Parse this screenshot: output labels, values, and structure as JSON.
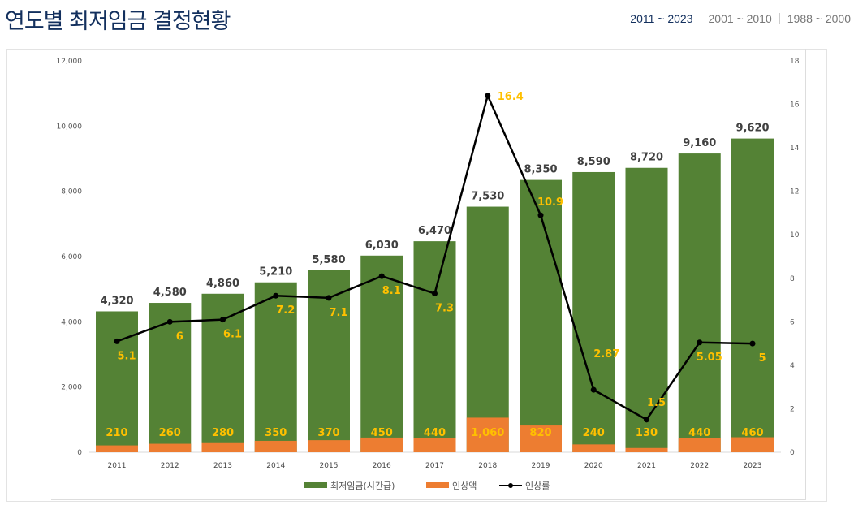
{
  "header": {
    "title": "연도별 최저임금 결정현황",
    "ranges": [
      {
        "label": "2011 ~ 2023",
        "active": true
      },
      {
        "label": "2001 ~ 2010",
        "active": false
      },
      {
        "label": "1988 ~ 2000",
        "active": false
      }
    ]
  },
  "chart_data": {
    "type": "bar+line",
    "categories": [
      "2011",
      "2012",
      "2013",
      "2014",
      "2015",
      "2016",
      "2017",
      "2018",
      "2019",
      "2020",
      "2021",
      "2022",
      "2023"
    ],
    "series": [
      {
        "name": "최저임금(시간급)",
        "type": "bar",
        "axis": "left",
        "color": "#548235",
        "values": [
          4320,
          4580,
          4860,
          5210,
          5580,
          6030,
          6470,
          7530,
          8350,
          8590,
          8720,
          9160,
          9620
        ],
        "labels": [
          "4,320",
          "4,580",
          "4,860",
          "5,210",
          "5,580",
          "6,030",
          "6,470",
          "7,530",
          "8,350",
          "8,590",
          "8,720",
          "9,160",
          "9,620"
        ]
      },
      {
        "name": "인상액",
        "type": "bar",
        "axis": "left",
        "color": "#ED7D31",
        "values": [
          210,
          260,
          280,
          350,
          370,
          450,
          440,
          1060,
          820,
          240,
          130,
          440,
          460
        ],
        "labels": [
          "210",
          "260",
          "280",
          "350",
          "370",
          "450",
          "440",
          "1,060",
          "820",
          "240",
          "130",
          "440",
          "460"
        ]
      },
      {
        "name": "인상률",
        "type": "line",
        "axis": "right",
        "color": "#000000",
        "values": [
          5.1,
          6,
          6.1,
          7.2,
          7.1,
          8.1,
          7.3,
          16.4,
          10.9,
          2.87,
          1.5,
          5.05,
          5
        ],
        "labels": [
          "5.1",
          "6",
          "6.1",
          "7.2",
          "7.1",
          "8.1",
          "7.3",
          "16.4",
          "10.9",
          "2.87",
          "1.5",
          "5.05",
          "5"
        ]
      }
    ],
    "y_left": {
      "range": [
        0,
        12000
      ],
      "ticks": [
        "0",
        "2,000",
        "4,000",
        "6,000",
        "8,000",
        "10,000",
        "12,000"
      ]
    },
    "y_right": {
      "range": [
        0,
        18
      ],
      "ticks": [
        "0",
        "2",
        "4",
        "6",
        "8",
        "10",
        "12",
        "14",
        "16",
        "18"
      ]
    },
    "label_color": "#FFC000",
    "grid": false,
    "legend": "bottom"
  }
}
